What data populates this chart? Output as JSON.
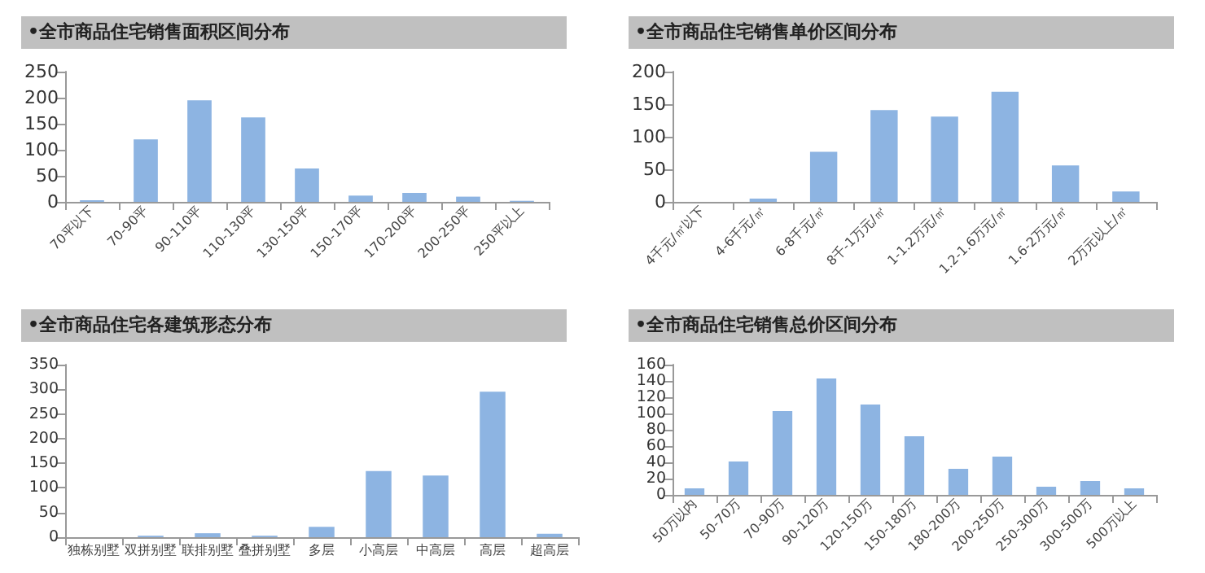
{
  "chart_data": [
    {
      "type": "bar",
      "title": "•全市商品住宅销售面积区间分布",
      "categories": [
        "70平以下",
        "70-90平",
        "90-110平",
        "110-130平",
        "130-150平",
        "150-170平",
        "170-200平",
        "200-250平",
        "250平以上"
      ],
      "values": [
        3,
        120,
        195,
        162,
        64,
        12,
        17,
        10,
        2
      ],
      "color": "#8db4e2",
      "ylim": [
        0,
        250
      ],
      "yticks": [
        0,
        50,
        100,
        150,
        200,
        250
      ]
    },
    {
      "type": "bar",
      "title": "•全市商品住宅销售单价区间分布",
      "categories": [
        "4千元/㎡以下",
        "4-6千元/㎡",
        "6-8千元/㎡",
        "8千-1万元/㎡",
        "1-1.2万元/㎡",
        "1.2-1.6万元/㎡",
        "1.6-2万元/㎡",
        "2万元以上/㎡"
      ],
      "values": [
        0,
        5,
        77,
        141,
        131,
        169,
        56,
        16
      ],
      "color": "#8db4e2",
      "ylim": [
        0,
        200
      ],
      "yticks": [
        0,
        50,
        100,
        150,
        200
      ]
    },
    {
      "type": "bar",
      "title": "•全市商品住宅各建筑形态分布",
      "categories": [
        "独栋别墅",
        "双拼别墅",
        "联排别墅",
        "叠拼别墅",
        "多层",
        "小高层",
        "中高层",
        "高层",
        "超高层"
      ],
      "values": [
        0,
        3,
        8,
        3,
        21,
        134,
        125,
        295,
        7
      ],
      "color": "#8db4e2",
      "ylim": [
        0,
        350
      ],
      "yticks": [
        0,
        50,
        100,
        150,
        200,
        250,
        300,
        350
      ]
    },
    {
      "type": "bar",
      "title": "•全市商品住宅销售总价区间分布",
      "categories": [
        "50万以内",
        "50-70万",
        "70-90万",
        "90-120万",
        "120-150万",
        "150-180万",
        "180-200万",
        "200-250万",
        "250-300万",
        "300-500万",
        "500万以上"
      ],
      "values": [
        8,
        41,
        103,
        143,
        111,
        72,
        32,
        47,
        10,
        17,
        8
      ],
      "color": "#8db4e2",
      "ylim": [
        0,
        160
      ],
      "yticks": [
        0,
        20,
        40,
        60,
        80,
        100,
        120,
        140,
        160
      ]
    }
  ]
}
